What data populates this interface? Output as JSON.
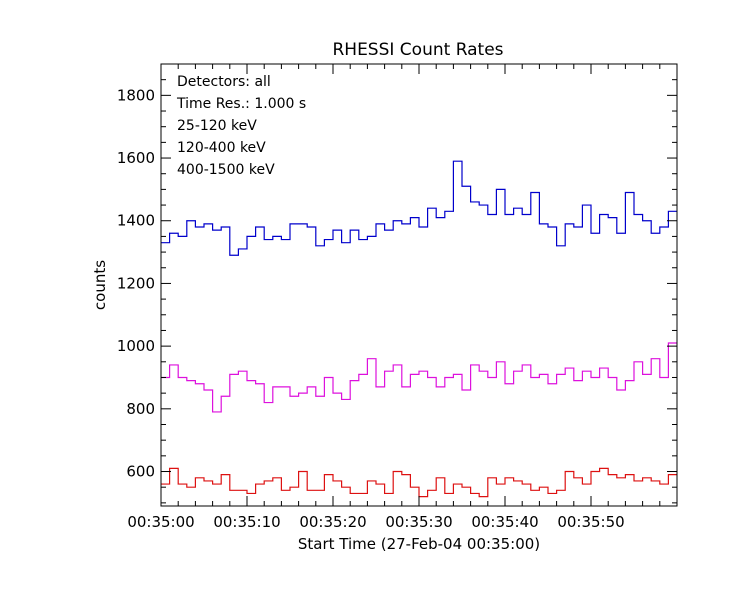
{
  "chart_data": {
    "type": "line",
    "step": true,
    "title": "RHESSI Count Rates",
    "xlabel": "Start Time (27-Feb-04 00:35:00)",
    "ylabel": "counts",
    "x_unit": "seconds after 00:35:00",
    "x_tick_values": [
      0,
      10,
      20,
      30,
      40,
      50
    ],
    "x_tick_labels": [
      "00:35:00",
      "00:35:10",
      "00:35:20",
      "00:35:30",
      "00:35:40",
      "00:35:50"
    ],
    "y_ticks": [
      600,
      800,
      1000,
      1200,
      1400,
      1600,
      1800
    ],
    "xlim": [
      0,
      60
    ],
    "ylim": [
      490,
      1900
    ],
    "annotations": [
      {
        "text": "Detectors: all",
        "color": "#000000"
      },
      {
        "text": "Time Res.: 1.000 s",
        "color": "#000000"
      }
    ],
    "series": [
      {
        "name": "25-120 keV",
        "color": "#0000cc",
        "values": [
          1330,
          1360,
          1350,
          1400,
          1380,
          1390,
          1370,
          1380,
          1290,
          1310,
          1350,
          1380,
          1340,
          1350,
          1340,
          1390,
          1390,
          1380,
          1320,
          1340,
          1370,
          1330,
          1370,
          1340,
          1350,
          1390,
          1370,
          1400,
          1390,
          1410,
          1380,
          1440,
          1410,
          1430,
          1590,
          1510,
          1460,
          1450,
          1420,
          1500,
          1420,
          1440,
          1420,
          1490,
          1390,
          1380,
          1320,
          1390,
          1380,
          1450,
          1360,
          1420,
          1410,
          1360,
          1490,
          1420,
          1400,
          1360,
          1380,
          1430
        ]
      },
      {
        "name": "120-400 keV",
        "color": "#dd11dd",
        "values": [
          900,
          940,
          900,
          890,
          880,
          860,
          790,
          840,
          910,
          920,
          890,
          880,
          820,
          870,
          870,
          840,
          850,
          870,
          840,
          900,
          850,
          830,
          890,
          910,
          960,
          870,
          920,
          940,
          870,
          910,
          920,
          900,
          870,
          900,
          910,
          860,
          940,
          920,
          900,
          950,
          880,
          920,
          940,
          900,
          910,
          880,
          910,
          930,
          890,
          920,
          900,
          930,
          900,
          860,
          890,
          950,
          910,
          960,
          900,
          1010
        ]
      },
      {
        "name": "400-1500 keV",
        "color": "#dd1111",
        "values": [
          560,
          610,
          560,
          550,
          580,
          570,
          560,
          590,
          540,
          540,
          530,
          560,
          570,
          580,
          540,
          550,
          600,
          540,
          540,
          590,
          570,
          550,
          530,
          530,
          570,
          560,
          530,
          600,
          590,
          550,
          520,
          540,
          580,
          530,
          560,
          550,
          530,
          520,
          580,
          560,
          580,
          570,
          560,
          540,
          550,
          530,
          540,
          600,
          580,
          560,
          600,
          610,
          590,
          580,
          590,
          570,
          580,
          570,
          560,
          590
        ]
      }
    ]
  }
}
